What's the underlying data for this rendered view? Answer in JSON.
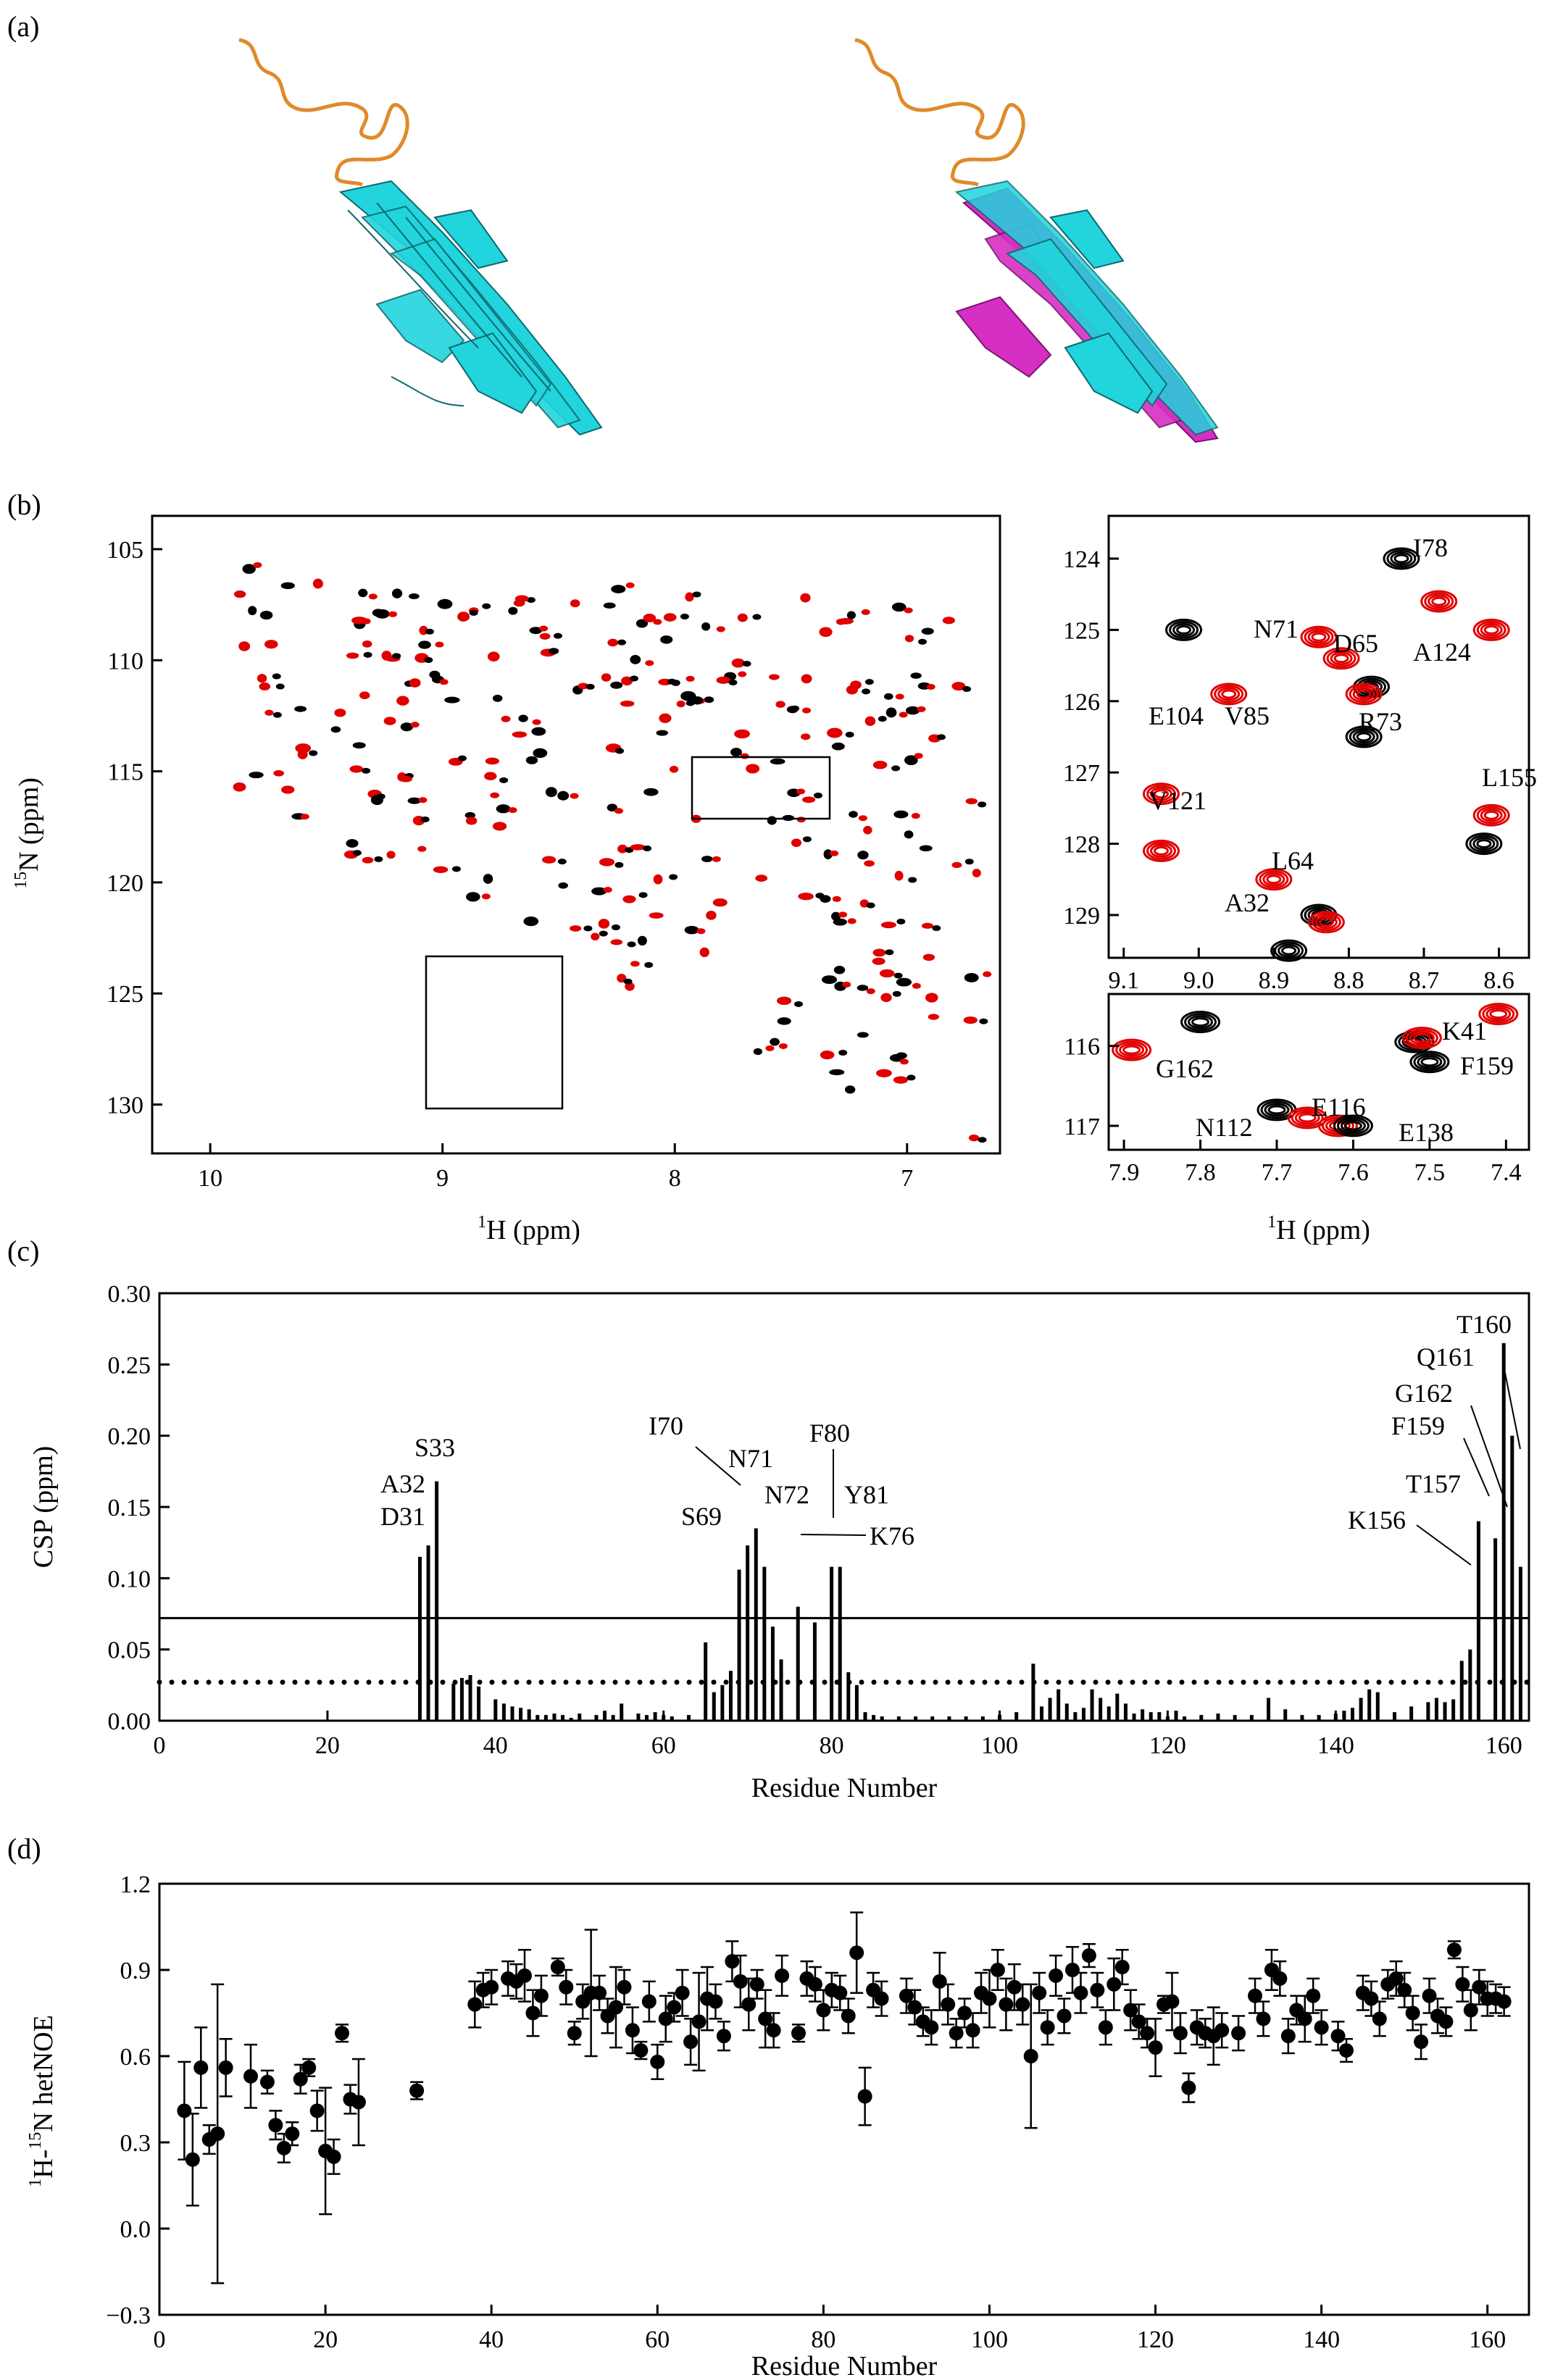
{
  "panel_labels": [
    "(a)",
    "(b)",
    "(c)",
    "(d)"
  ],
  "colors": {
    "ribbon_disordered": "#e08a2a",
    "ribbon_apo": "#22d4dc",
    "ribbon_overlay": "#d62fc4",
    "peak_black": "#000000",
    "peak_red": "#e00000"
  },
  "panel_b": {
    "main": {
      "xlabel_sup": "1",
      "xlabel": "H  (ppm)",
      "ylabel_sup": "15",
      "ylabel": "N  (ppm)",
      "xticks": [
        "10",
        "9",
        "8",
        "7"
      ],
      "yticks": [
        "105",
        "110",
        "115",
        "120",
        "125",
        "130"
      ]
    },
    "zoom1": {
      "xticks": [
        "9.1",
        "9.0",
        "8.9",
        "8.8",
        "8.7",
        "8.6"
      ],
      "yticks": [
        "124",
        "125",
        "126",
        "127",
        "128",
        "129"
      ],
      "labels": [
        "I78",
        "N71",
        "D65",
        "A124",
        "E104",
        "V85",
        "R73",
        "L155",
        "V121",
        "L64",
        "A32"
      ]
    },
    "zoom2": {
      "xticks": [
        "7.9",
        "7.8",
        "7.7",
        "7.6",
        "7.5",
        "7.4"
      ],
      "yticks": [
        "116",
        "117"
      ],
      "labels": [
        "G162",
        "K41",
        "F159",
        "E116",
        "N112",
        "E138"
      ],
      "xlabel_sup": "1",
      "xlabel": "H  (ppm)"
    }
  },
  "chart_data": [
    {
      "type": "bar",
      "panel": "(c)",
      "xlabel": "Residue Number",
      "ylabel": "CSP  (ppm)",
      "xlim": [
        0,
        163
      ],
      "ylim": [
        0,
        0.3
      ],
      "xticks": [
        "0",
        "20",
        "40",
        "60",
        "80",
        "100",
        "120",
        "140",
        "160"
      ],
      "yticks": [
        "0.00",
        "0.05",
        "0.10",
        "0.15",
        "0.20",
        "0.25",
        "0.30"
      ],
      "threshold_solid": 0.072,
      "threshold_dotted": 0.027,
      "x": [
        31,
        32,
        33,
        35,
        36,
        37,
        38,
        40,
        41,
        42,
        43,
        44,
        45,
        46,
        47,
        48,
        49,
        50,
        52,
        53,
        54,
        55,
        57,
        58,
        59,
        60,
        61,
        63,
        65,
        66,
        67,
        68,
        69,
        70,
        71,
        72,
        73,
        74,
        76,
        78,
        80,
        81,
        82,
        83,
        84,
        85,
        86,
        88,
        90,
        92,
        94,
        96,
        98,
        100,
        102,
        104,
        105,
        106,
        107,
        108,
        109,
        110,
        111,
        112,
        113,
        114,
        115,
        116,
        117,
        118,
        119,
        120,
        121,
        122,
        124,
        126,
        128,
        130,
        132,
        134,
        136,
        138,
        140,
        141,
        142,
        143,
        144,
        145,
        147,
        149,
        151,
        152,
        153,
        154,
        155,
        156,
        157,
        159,
        160,
        161,
        162
      ],
      "values": [
        0.115,
        0.123,
        0.168,
        0.026,
        0.03,
        0.032,
        0.024,
        0.015,
        0.012,
        0.01,
        0.009,
        0.008,
        0.004,
        0.004,
        0.005,
        0.004,
        0.002,
        0.005,
        0.004,
        0.007,
        0.004,
        0.012,
        0.005,
        0.004,
        0.006,
        0.004,
        0.003,
        0.004,
        0.055,
        0.02,
        0.025,
        0.035,
        0.106,
        0.123,
        0.135,
        0.108,
        0.066,
        0.043,
        0.08,
        0.069,
        0.108,
        0.108,
        0.034,
        0.025,
        0.006,
        0.004,
        0.003,
        0.003,
        0.003,
        0.003,
        0.003,
        0.003,
        0.003,
        0.004,
        0.006,
        0.04,
        0.01,
        0.016,
        0.022,
        0.012,
        0.006,
        0.009,
        0.022,
        0.016,
        0.01,
        0.019,
        0.012,
        0.005,
        0.008,
        0.006,
        0.006,
        0.003,
        0.007,
        0.003,
        0.004,
        0.005,
        0.004,
        0.004,
        0.016,
        0.008,
        0.004,
        0.004,
        0.005,
        0.007,
        0.009,
        0.016,
        0.022,
        0.02,
        0.006,
        0.01,
        0.013,
        0.016,
        0.013,
        0.015,
        0.042,
        0.05,
        0.14,
        0.128,
        0.265,
        0.2,
        0.108
      ],
      "annotations": [
        "D31",
        "A32",
        "S33",
        "S69",
        "I70",
        "N71",
        "N72",
        "F80",
        "Y81",
        "K76",
        "K156",
        "T157",
        "F159",
        "G162",
        "Q161",
        "T160"
      ]
    },
    {
      "type": "scatter",
      "panel": "(d)",
      "xlabel": "Residue Number",
      "ylabel_pre": "H-",
      "ylabel_sup1": "1",
      "ylabel_sup2": "15",
      "ylabel": "N  hetNOE",
      "xlim": [
        0,
        165
      ],
      "ylim": [
        -0.3,
        1.2
      ],
      "xticks": [
        "0",
        "20",
        "40",
        "60",
        "80",
        "100",
        "120",
        "140",
        "160"
      ],
      "yticks": [
        "−0.3",
        "0.0",
        "0.3",
        "0.6",
        "0.9",
        "1.2"
      ],
      "points": [
        [
          3,
          0.41,
          0.17
        ],
        [
          4,
          0.24,
          0.16
        ],
        [
          5,
          0.56,
          0.14
        ],
        [
          6,
          0.31,
          0.05
        ],
        [
          7,
          0.33,
          0.52
        ],
        [
          8,
          0.56,
          0.1
        ],
        [
          11,
          0.53,
          0.11
        ],
        [
          13,
          0.51,
          0.04
        ],
        [
          14,
          0.36,
          0.05
        ],
        [
          15,
          0.28,
          0.05
        ],
        [
          16,
          0.33,
          0.04
        ],
        [
          17,
          0.52,
          0.05
        ],
        [
          18,
          0.56,
          0.03
        ],
        [
          19,
          0.41,
          0.07
        ],
        [
          20,
          0.27,
          0.22
        ],
        [
          21,
          0.25,
          0.06
        ],
        [
          22,
          0.68,
          0.03
        ],
        [
          23,
          0.45,
          0.05
        ],
        [
          24,
          0.44,
          0.15
        ],
        [
          31,
          0.48,
          0.03
        ],
        [
          38,
          0.78,
          0.08
        ],
        [
          39,
          0.83,
          0.06
        ],
        [
          40,
          0.84,
          0.06
        ],
        [
          42,
          0.87,
          0.06
        ],
        [
          43,
          0.86,
          0.06
        ],
        [
          44,
          0.88,
          0.09
        ],
        [
          45,
          0.75,
          0.08
        ],
        [
          46,
          0.81,
          0.07
        ],
        [
          48,
          0.91,
          0.03
        ],
        [
          49,
          0.84,
          0.06
        ],
        [
          50,
          0.68,
          0.04
        ],
        [
          51,
          0.79,
          0.06
        ],
        [
          52,
          0.82,
          0.22
        ],
        [
          53,
          0.82,
          0.06
        ],
        [
          54,
          0.74,
          0.06
        ],
        [
          55,
          0.77,
          0.14
        ],
        [
          56,
          0.84,
          0.06
        ],
        [
          57,
          0.69,
          0.08
        ],
        [
          58,
          0.62,
          0.03
        ],
        [
          59,
          0.79,
          0.07
        ],
        [
          60,
          0.58,
          0.06
        ],
        [
          61,
          0.73,
          0.08
        ],
        [
          62,
          0.77,
          0.05
        ],
        [
          63,
          0.82,
          0.08
        ],
        [
          64,
          0.65,
          0.08
        ],
        [
          65,
          0.72,
          0.17
        ],
        [
          66,
          0.8,
          0.11
        ],
        [
          67,
          0.79,
          0.06
        ],
        [
          68,
          0.67,
          0.05
        ],
        [
          69,
          0.93,
          0.07
        ],
        [
          70,
          0.86,
          0.09
        ],
        [
          71,
          0.78,
          0.09
        ],
        [
          72,
          0.85,
          0.05
        ],
        [
          73,
          0.73,
          0.1
        ],
        [
          74,
          0.69,
          0.06
        ],
        [
          75,
          0.88,
          0.07
        ],
        [
          77,
          0.68,
          0.03
        ],
        [
          78,
          0.87,
          0.06
        ],
        [
          79,
          0.85,
          0.06
        ],
        [
          80,
          0.76,
          0.07
        ],
        [
          81,
          0.83,
          0.06
        ],
        [
          82,
          0.82,
          0.06
        ],
        [
          83,
          0.74,
          0.06
        ],
        [
          84,
          0.96,
          0.14
        ],
        [
          85,
          0.46,
          0.1
        ],
        [
          86,
          0.83,
          0.06
        ],
        [
          87,
          0.8,
          0.06
        ],
        [
          90,
          0.81,
          0.06
        ],
        [
          91,
          0.77,
          0.06
        ],
        [
          92,
          0.72,
          0.05
        ],
        [
          93,
          0.7,
          0.06
        ],
        [
          94,
          0.86,
          0.1
        ],
        [
          95,
          0.78,
          0.07
        ],
        [
          96,
          0.68,
          0.05
        ],
        [
          97,
          0.75,
          0.05
        ],
        [
          98,
          0.69,
          0.06
        ],
        [
          99,
          0.82,
          0.07
        ],
        [
          100,
          0.8,
          0.1
        ],
        [
          101,
          0.9,
          0.07
        ],
        [
          102,
          0.78,
          0.09
        ],
        [
          103,
          0.84,
          0.08
        ],
        [
          104,
          0.78,
          0.07
        ],
        [
          105,
          0.6,
          0.25
        ],
        [
          106,
          0.82,
          0.07
        ],
        [
          107,
          0.7,
          0.06
        ],
        [
          108,
          0.88,
          0.07
        ],
        [
          109,
          0.74,
          0.06
        ],
        [
          110,
          0.9,
          0.08
        ],
        [
          111,
          0.82,
          0.07
        ],
        [
          112,
          0.95,
          0.04
        ],
        [
          113,
          0.83,
          0.06
        ],
        [
          114,
          0.7,
          0.06
        ],
        [
          115,
          0.85,
          0.09
        ],
        [
          116,
          0.91,
          0.06
        ],
        [
          117,
          0.76,
          0.07
        ],
        [
          118,
          0.72,
          0.06
        ],
        [
          119,
          0.68,
          0.05
        ],
        [
          120,
          0.63,
          0.1
        ],
        [
          121,
          0.78,
          0.03
        ],
        [
          122,
          0.79,
          0.1
        ],
        [
          123,
          0.68,
          0.07
        ],
        [
          124,
          0.49,
          0.05
        ],
        [
          125,
          0.7,
          0.06
        ],
        [
          126,
          0.68,
          0.05
        ],
        [
          127,
          0.67,
          0.1
        ],
        [
          128,
          0.69,
          0.06
        ],
        [
          130,
          0.68,
          0.06
        ],
        [
          132,
          0.81,
          0.06
        ],
        [
          133,
          0.73,
          0.06
        ],
        [
          134,
          0.9,
          0.07
        ],
        [
          135,
          0.87,
          0.06
        ],
        [
          136,
          0.67,
          0.06
        ],
        [
          137,
          0.76,
          0.05
        ],
        [
          138,
          0.73,
          0.08
        ],
        [
          139,
          0.81,
          0.06
        ],
        [
          140,
          0.7,
          0.06
        ],
        [
          142,
          0.67,
          0.05
        ],
        [
          143,
          0.62,
          0.04
        ],
        [
          145,
          0.82,
          0.06
        ],
        [
          146,
          0.8,
          0.06
        ],
        [
          147,
          0.73,
          0.06
        ],
        [
          148,
          0.85,
          0.05
        ],
        [
          149,
          0.87,
          0.06
        ],
        [
          150,
          0.83,
          0.06
        ],
        [
          151,
          0.75,
          0.06
        ],
        [
          152,
          0.65,
          0.06
        ],
        [
          153,
          0.81,
          0.06
        ],
        [
          154,
          0.74,
          0.06
        ],
        [
          155,
          0.72,
          0.05
        ],
        [
          156,
          0.97,
          0.03
        ],
        [
          157,
          0.85,
          0.06
        ],
        [
          158,
          0.76,
          0.07
        ],
        [
          159,
          0.84,
          0.06
        ],
        [
          160,
          0.8,
          0.06
        ],
        [
          161,
          0.8,
          0.05
        ],
        [
          162,
          0.79,
          0.05
        ]
      ]
    }
  ]
}
